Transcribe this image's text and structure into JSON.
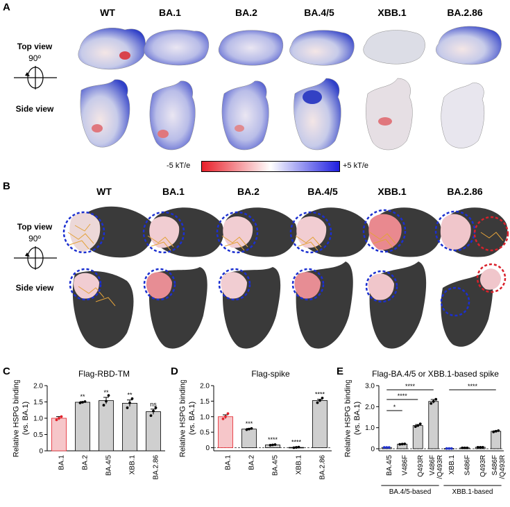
{
  "panel_letters": {
    "A": "A",
    "B": "B",
    "C": "C",
    "D": "D",
    "E": "E"
  },
  "variants": [
    "WT",
    "BA.1",
    "BA.2",
    "BA.4/5",
    "XBB.1",
    "BA.2.86"
  ],
  "views": {
    "top": "Top view",
    "rotation": "90º",
    "side": "Side view"
  },
  "colorbar": {
    "min_label": "-5 kT/e",
    "max_label": "+5 kT/e",
    "neg_color": "#e8202a",
    "mid_color": "#ffffff",
    "pos_color": "#1e1ee0"
  },
  "colors": {
    "surface_dark": "#3a3a3a",
    "ring_blue": "#1b2fd0",
    "ring_red": "#d9202a",
    "bar_gray": "#cfcfcf",
    "bar_pink": "#f6c6c9",
    "dot_red": "#e3222b",
    "dot_blue": "#2233cc"
  },
  "chart_data": [
    {
      "type": "bar",
      "title": "Flag-RBD-TM",
      "ylabel": "Relative HSPG binding (vs. BA.1)",
      "ylim": [
        0,
        2.0
      ],
      "yticks": [
        "0",
        "0.5",
        "1.0",
        "1.5",
        "2.0"
      ],
      "categories": [
        "BA.1",
        "BA.2",
        "BA.4/5",
        "XBB.1",
        "BA.2.86"
      ],
      "values": [
        1.0,
        1.49,
        1.54,
        1.46,
        1.2
      ],
      "errors": [
        0.05,
        0.02,
        0.1,
        0.1,
        0.08
      ],
      "points": [
        [
          0.95,
          1.0,
          1.05
        ],
        [
          1.47,
          1.49,
          1.51
        ],
        [
          1.4,
          1.52,
          1.7
        ],
        [
          1.32,
          1.47,
          1.6
        ],
        [
          1.08,
          1.22,
          1.32
        ]
      ],
      "significance": [
        "",
        "**",
        "**",
        "**",
        "ns"
      ]
    },
    {
      "type": "bar",
      "title": "Flag-spike",
      "ylabel": "Relative HSPG binding (vs. BA.1)",
      "ylim": [
        -0.1,
        2.0
      ],
      "yticks": [
        "0",
        "0.5",
        "1.0",
        "1.5",
        "2.0"
      ],
      "categories": [
        "BA.1",
        "BA.2",
        "BA.4/5",
        "XBB.1",
        "BA.2.86"
      ],
      "values": [
        1.0,
        0.6,
        0.09,
        0.01,
        1.52
      ],
      "errors": [
        0.06,
        0.02,
        0.01,
        0.01,
        0.04
      ],
      "points": [
        [
          0.93,
          1.0,
          1.1
        ],
        [
          0.58,
          0.6,
          0.62
        ],
        [
          0.08,
          0.09,
          0.1
        ],
        [
          0.0,
          0.01,
          0.02
        ],
        [
          1.45,
          1.52,
          1.6
        ]
      ],
      "significance": [
        "",
        "***",
        "****",
        "****",
        "****"
      ]
    },
    {
      "type": "bar",
      "title": "Flag-BA.4/5 or XBB.1-based spike",
      "ylabel": "Relative HSPG binding (vs. BA.1)",
      "ylim": [
        -0.1,
        3.0
      ],
      "yticks": [
        "0",
        "1.0",
        "2.0",
        "3.0"
      ],
      "categories": [
        "BA.4/5",
        "V486F",
        "Q493R",
        "V486F/Q493R",
        "XBB.1",
        "S486F",
        "Q493R",
        "S486F/Q493R"
      ],
      "category_labels": [
        [
          "BA.4/5"
        ],
        [
          "V486F"
        ],
        [
          "Q493R"
        ],
        [
          "V486F",
          "/Q493R"
        ],
        [
          "XBB.1"
        ],
        [
          "S486F"
        ],
        [
          "Q493R"
        ],
        [
          "S486F",
          "/Q493R"
        ]
      ],
      "values": [
        0.06,
        0.22,
        1.1,
        2.25,
        0.01,
        0.04,
        0.07,
        0.83
      ],
      "errors": [
        0.0,
        0.01,
        0.05,
        0.09,
        0.0,
        0.01,
        0.01,
        0.02
      ],
      "points": [
        [
          0.06,
          0.06,
          0.06
        ],
        [
          0.21,
          0.22,
          0.23
        ],
        [
          1.05,
          1.1,
          1.18
        ],
        [
          2.15,
          2.25,
          2.35
        ],
        [
          0.01,
          0.01,
          0.01
        ],
        [
          0.04,
          0.04,
          0.04
        ],
        [
          0.07,
          0.07,
          0.07
        ],
        [
          0.8,
          0.83,
          0.86
        ]
      ],
      "comparisons": [
        {
          "from": 0,
          "to": 1,
          "label": "*"
        },
        {
          "from": 0,
          "to": 2,
          "label": "****"
        },
        {
          "from": 0,
          "to": 3,
          "label": "****"
        },
        {
          "from": 4,
          "to": 7,
          "label": "****"
        }
      ],
      "groups": [
        {
          "label": "BA.4/5-based",
          "from": 0,
          "to": 3
        },
        {
          "label": "XBB.1-based",
          "from": 4,
          "to": 7
        }
      ]
    }
  ]
}
